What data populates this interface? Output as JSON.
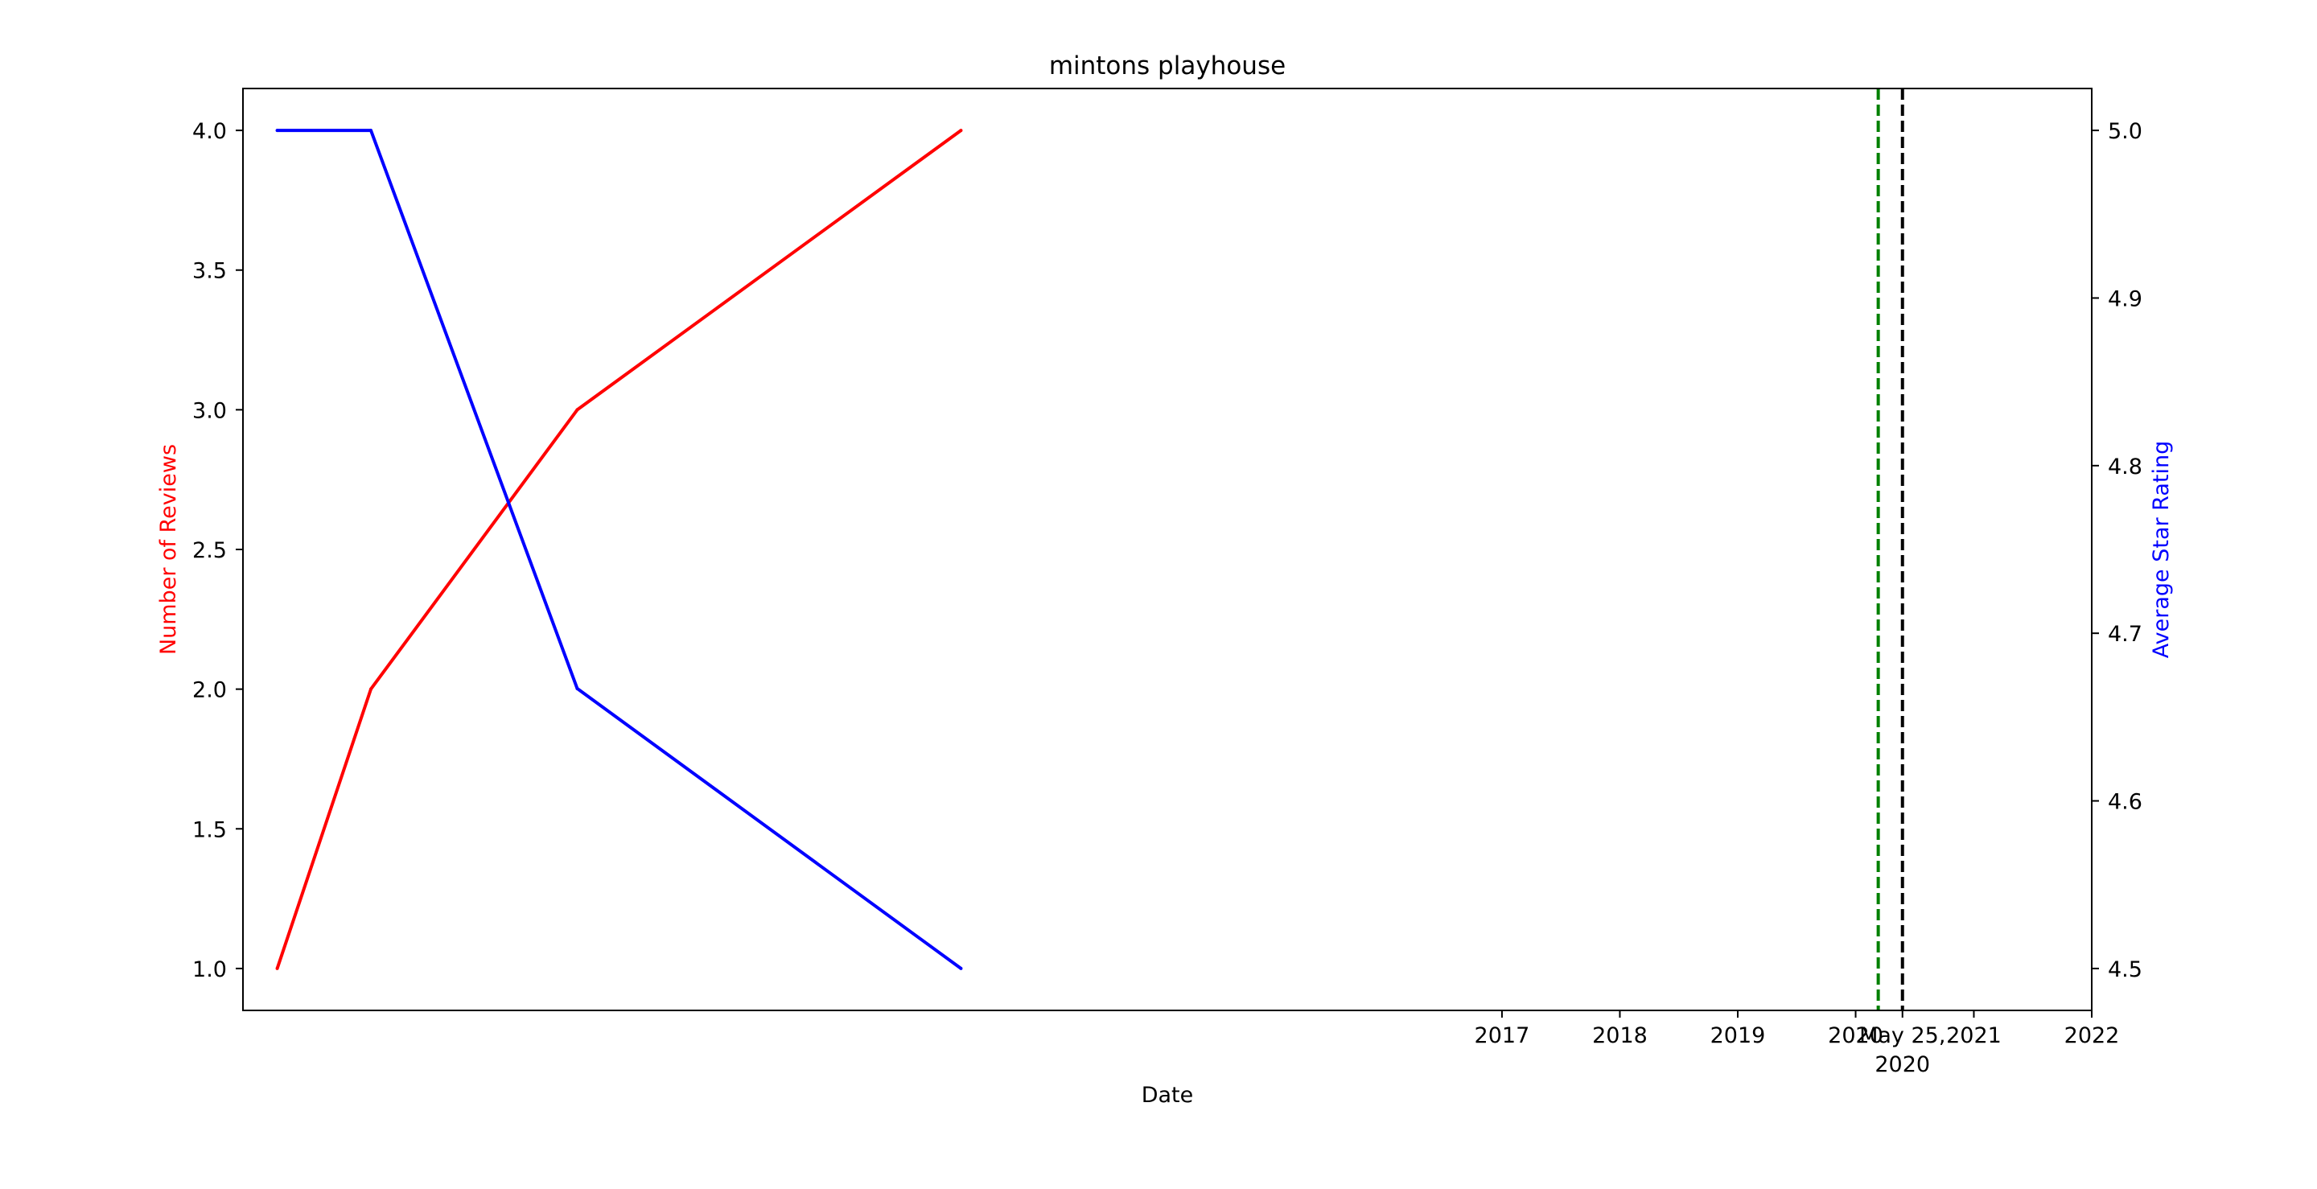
{
  "chart_data": {
    "type": "line",
    "title": "mintons playhouse",
    "xlabel": "Date",
    "ylabel_left": "Number of Reviews",
    "ylabel_right": "Average Star Rating",
    "ylabel_left_color": "#ff0000",
    "ylabel_right_color": "#0000ff",
    "xlim": [
      "2006-05-01",
      "2022-01-01"
    ],
    "ylim_left": [
      0.85,
      4.15
    ],
    "ylim_right": [
      4.475,
      5.025
    ],
    "x_ticks": [
      {
        "date": "2017-01-01",
        "label": "2017"
      },
      {
        "date": "2018-01-01",
        "label": "2018"
      },
      {
        "date": "2019-01-01",
        "label": "2019"
      },
      {
        "date": "2020-01-01",
        "label": "2020"
      },
      {
        "date": "2020-05-25",
        "label": "May 25,",
        "label2": "2020"
      },
      {
        "date": "2021-01-01",
        "label": "2021"
      },
      {
        "date": "2022-01-01",
        "label": "2022"
      }
    ],
    "y_ticks_left": [
      {
        "value": 1.0,
        "label": "1.0"
      },
      {
        "value": 1.5,
        "label": "1.5"
      },
      {
        "value": 2.0,
        "label": "2.0"
      },
      {
        "value": 2.5,
        "label": "2.5"
      },
      {
        "value": 3.0,
        "label": "3.0"
      },
      {
        "value": 3.5,
        "label": "3.5"
      },
      {
        "value": 4.0,
        "label": "4.0"
      }
    ],
    "y_ticks_right": [
      {
        "value": 4.5,
        "label": "4.5"
      },
      {
        "value": 4.6,
        "label": "4.6"
      },
      {
        "value": 4.7,
        "label": "4.7"
      },
      {
        "value": 4.8,
        "label": "4.8"
      },
      {
        "value": 4.9,
        "label": "4.9"
      },
      {
        "value": 5.0,
        "label": "5.0"
      }
    ],
    "series": [
      {
        "axis": "left",
        "color": "#ff0000",
        "points": [
          {
            "x": "2006-08-15",
            "y": 1
          },
          {
            "x": "2007-06-01",
            "y": 2
          },
          {
            "x": "2009-03-01",
            "y": 3
          },
          {
            "x": "2012-06-01",
            "y": 4
          }
        ]
      },
      {
        "axis": "right",
        "color": "#0000ff",
        "points": [
          {
            "x": "2006-08-15",
            "y": 5.0
          },
          {
            "x": "2007-06-01",
            "y": 5.0
          },
          {
            "x": "2009-03-01",
            "y": 4.667
          },
          {
            "x": "2012-06-01",
            "y": 4.5
          }
        ]
      }
    ],
    "vlines": [
      {
        "x": "2020-03-11",
        "color": "#008000",
        "style": "dashed"
      },
      {
        "x": "2020-05-25",
        "color": "#000000",
        "style": "dashed"
      }
    ],
    "grid": false,
    "legend": "none"
  }
}
